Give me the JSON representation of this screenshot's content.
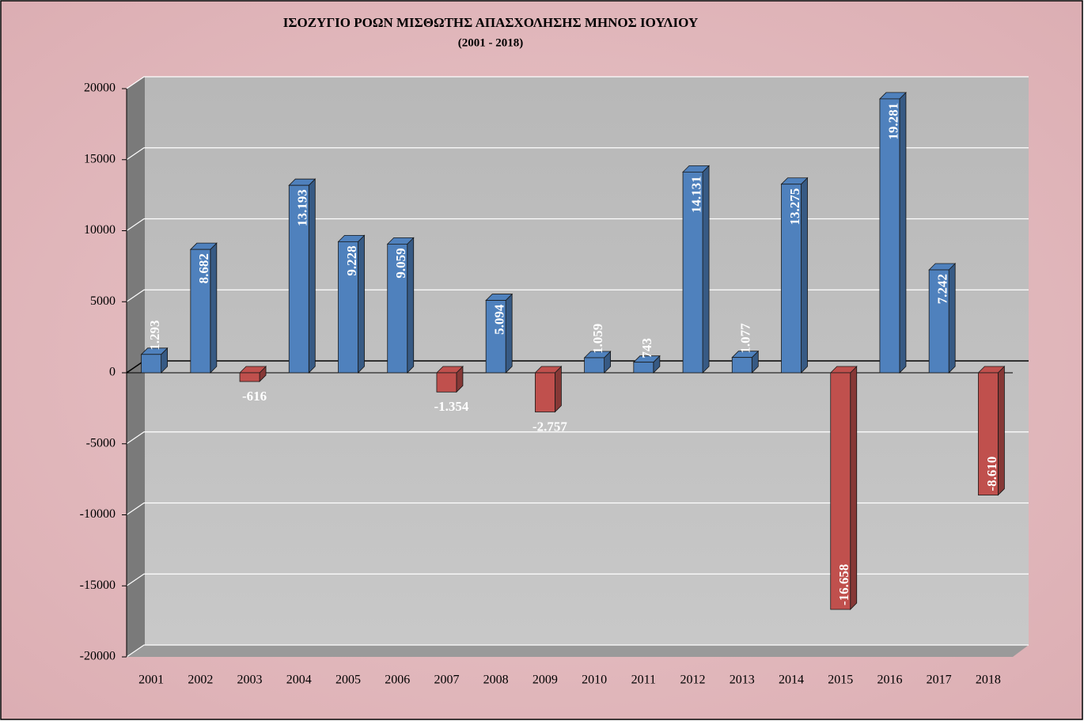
{
  "chart_data": {
    "type": "bar",
    "title": "ΙΣΟΖΥΓΙΟ ΡΟΩΝ ΜΙΣΘΩΤΗΣ ΑΠΑΣΧΟΛΗΣΗΣ ΜΗΝΟΣ  ΙΟΥΛΙΟΥ",
    "subtitle": "(2001 - 2018)",
    "categories": [
      "2001",
      "2002",
      "2003",
      "2004",
      "2005",
      "2006",
      "2007",
      "2008",
      "2009",
      "2010",
      "2011",
      "2012",
      "2013",
      "2014",
      "2015",
      "2016",
      "2017",
      "2018"
    ],
    "values": [
      1293,
      8682,
      -616,
      13193,
      9228,
      9059,
      -1354,
      5094,
      -2757,
      1059,
      743,
      14131,
      1077,
      13275,
      -16658,
      19281,
      7242,
      -8610
    ],
    "value_labels": [
      "1.293",
      "8.682",
      "-616",
      "13.193",
      "9.228",
      "9.059",
      "-1.354",
      "5.094",
      "-2.757",
      "1.059",
      "743",
      "14.131",
      "1.077",
      "13.275",
      "-16.658",
      "19.281",
      "7.242",
      "-8.610"
    ],
    "positive_color": "#4f81bd",
    "negative_color": "#c0504d",
    "ylim": [
      -20000,
      20000
    ],
    "yticks": [
      -20000,
      -15000,
      -10000,
      -5000,
      0,
      5000,
      10000,
      15000,
      20000
    ],
    "grid": true
  }
}
